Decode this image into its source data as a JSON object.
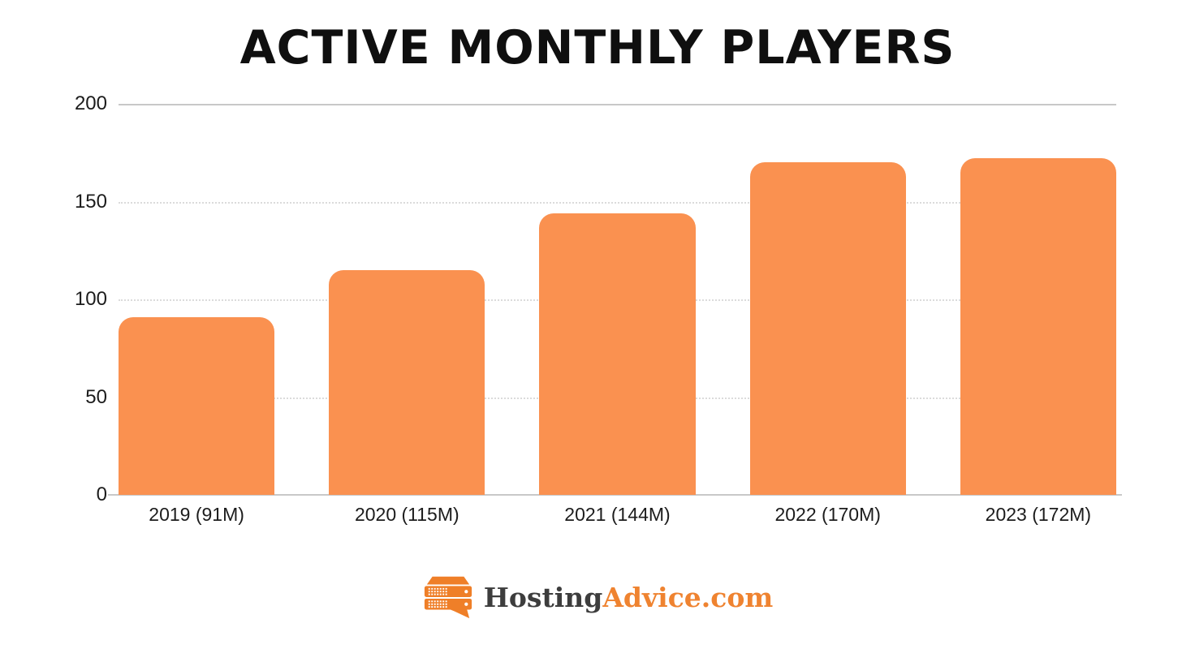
{
  "chart_data": {
    "type": "bar",
    "title": "ACTIVE MONTHLY PLAYERS",
    "categories": [
      "2019 (91M)",
      "2020 (115M)",
      "2021 (144M)",
      "2022 (170M)",
      "2023 (172M)"
    ],
    "values": [
      91,
      115,
      144,
      170,
      172
    ],
    "xlabel": "",
    "ylabel": "",
    "ylim": [
      0,
      200
    ],
    "yticks": [
      0,
      50,
      100,
      150,
      200
    ],
    "grid": "horizontal",
    "legend": "none",
    "bar_color": "#FA9150",
    "gridline_solid_color": "#c8c8c8",
    "gridline_dotted_color": "#dbdbdb",
    "axis_label_color": "#1c1c1c",
    "title_color": "#0f0f0f"
  },
  "footer": {
    "logo_icon": "server-stack-speech-bubble-icon",
    "logo_text_primary": "Hosting",
    "logo_text_secondary": "Advice.com",
    "logo_primary_color": "#3d3d3d",
    "logo_secondary_color": "#EF8330",
    "logo_icon_color": "#EF7F28"
  }
}
